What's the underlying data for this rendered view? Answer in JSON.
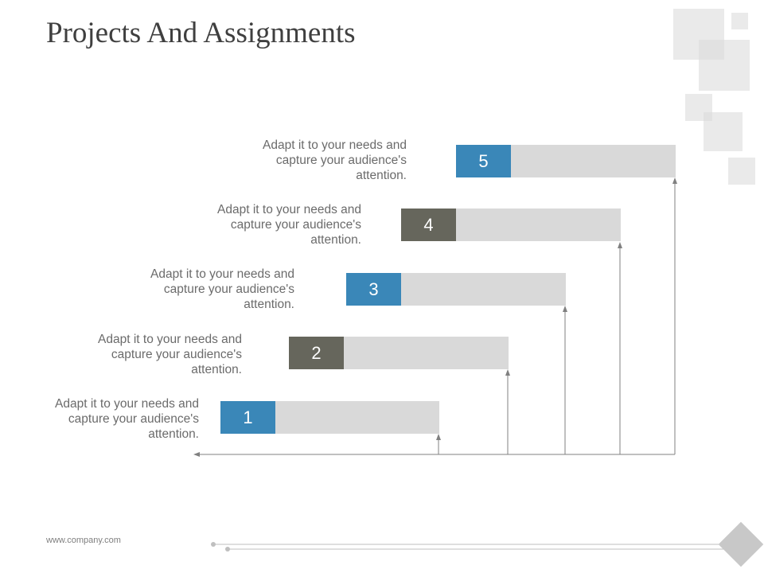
{
  "page": {
    "title": "Projects And Assignments",
    "footer": "www.company.com"
  },
  "colors": {
    "accent_blue": "#3a87b8",
    "accent_gray": "#66665c",
    "bar_fill": "#d9d9d9",
    "line": "#808080"
  },
  "steps": [
    {
      "number": "1",
      "color": "accent_blue",
      "label_line1": "Adapt it to your needs and",
      "label_line2": "capture your audience's",
      "label_line3": "attention."
    },
    {
      "number": "2",
      "color": "accent_gray",
      "label_line1": "Adapt it to your needs and",
      "label_line2": "capture your audience's",
      "label_line3": "attention."
    },
    {
      "number": "3",
      "color": "accent_blue",
      "label_line1": "Adapt it to your needs and",
      "label_line2": "capture your audience's",
      "label_line3": "attention."
    },
    {
      "number": "4",
      "color": "accent_gray",
      "label_line1": "Adapt it to your needs and",
      "label_line2": "capture your audience's",
      "label_line3": "attention."
    },
    {
      "number": "5",
      "color": "accent_blue",
      "label_line1": "Adapt it to your needs and",
      "label_line2": "capture your audience's",
      "label_line3": "attention."
    }
  ]
}
